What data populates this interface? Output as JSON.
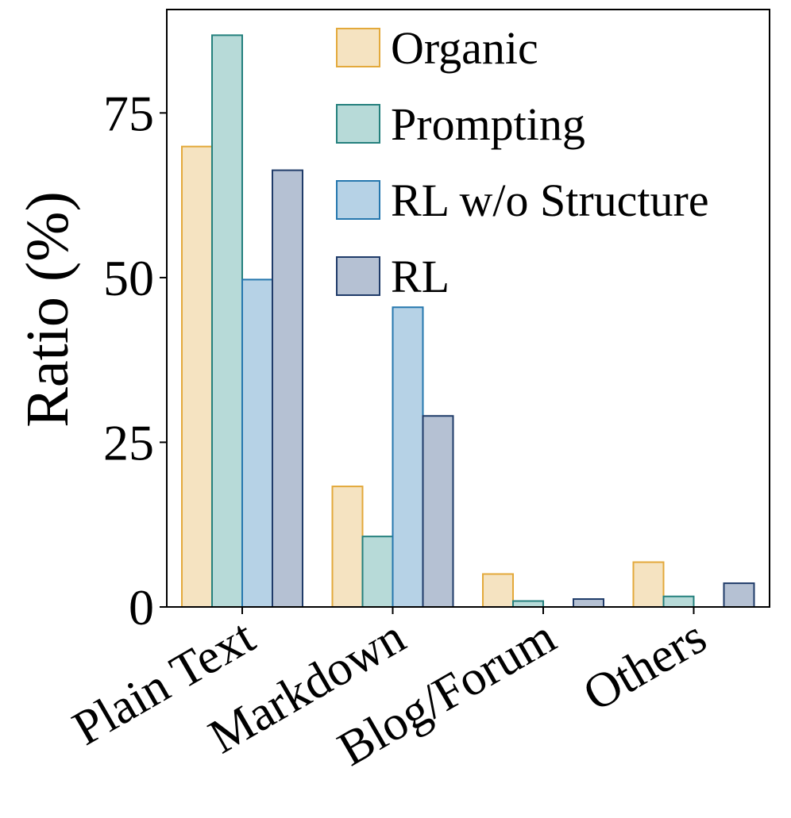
{
  "chart_data": {
    "type": "bar",
    "title": "",
    "xlabel": "",
    "ylabel": "Ratio (%)",
    "ylim": [
      0,
      90.7
    ],
    "yticks": [
      0,
      25,
      50,
      75
    ],
    "grid": false,
    "legend_position": "top-right",
    "categories": [
      "Plain Text",
      "Markdown",
      "Blog/Forum",
      "Others"
    ],
    "series": [
      {
        "name": "Organic",
        "values": [
          69.9,
          18.3,
          5.0,
          6.8
        ],
        "fill": "#f5e3c1",
        "stroke": "#e3a93b"
      },
      {
        "name": "Prompting",
        "values": [
          86.8,
          10.7,
          0.9,
          1.6
        ],
        "fill": "#b7dad8",
        "stroke": "#24807d"
      },
      {
        "name": "RL w/o Structure",
        "values": [
          49.7,
          45.5,
          0.0,
          0.0
        ],
        "fill": "#b6d2e6",
        "stroke": "#2577ae"
      },
      {
        "name": "RL",
        "values": [
          66.3,
          29.0,
          1.2,
          3.6
        ],
        "fill": "#b5c1d3",
        "stroke": "#1f3b69"
      }
    ]
  }
}
